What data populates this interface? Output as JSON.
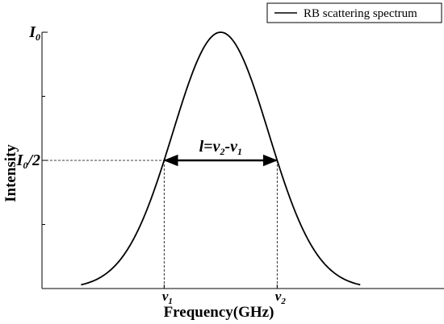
{
  "chart_data": {
    "type": "line",
    "title": "",
    "xlabel": "Frequency(GHz)",
    "ylabel": "Intensity",
    "grid": false,
    "legend": {
      "position": "top-right",
      "entries": [
        "RB scattering spectrum"
      ]
    },
    "xlim": [
      -1.6,
      2.0
    ],
    "ylim": [
      0,
      1
    ],
    "series": [
      {
        "name": "RB scattering spectrum",
        "shape": "gaussian",
        "peak_x": 0,
        "peak_y": 1,
        "sigma": 0.43
      }
    ],
    "y_tick_labels": [
      {
        "value": 1.0,
        "base": "I",
        "sub": "0",
        "suffix": ""
      },
      {
        "value": 0.5,
        "base": "I",
        "sub": "0",
        "suffix": "/2"
      }
    ],
    "x_tick_labels": [
      {
        "value": -0.506,
        "base": "v",
        "sub": "1"
      },
      {
        "value": 0.506,
        "base": "v",
        "sub": "2"
      }
    ],
    "minor_y_ticks": [
      0.25,
      0.75
    ],
    "annotation": {
      "text_base": "l=v",
      "text_sub1": "2",
      "text_mid": "-v",
      "text_sub2": "1",
      "from_x": -0.506,
      "to_x": 0.506,
      "y": 0.5
    }
  }
}
